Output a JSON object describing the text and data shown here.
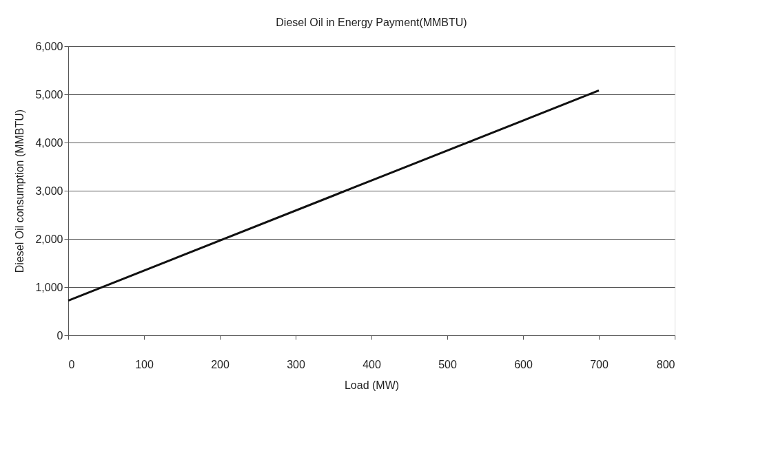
{
  "chart_data": {
    "type": "line",
    "title": "Diesel Oil in Energy Payment(MMBTU)",
    "xlabel": "Load (MW)",
    "ylabel": "Diesel Oil consumption (MMBTU)",
    "x": [
      0,
      350,
      700
    ],
    "series": [
      {
        "color": "#111111",
        "values": [
          720,
          2900,
          5080
        ]
      }
    ],
    "xlim": [
      0,
      800
    ],
    "xticks": [
      0,
      100,
      200,
      300,
      400,
      500,
      600,
      700,
      800
    ],
    "ylim": [
      0,
      6000
    ],
    "yticks": [
      0,
      {
        "value": 1000,
        "label": "1,000"
      },
      {
        "value": 2000,
        "label": "2,000"
      },
      {
        "value": 3000,
        "label": "3,000"
      },
      {
        "value": 4000,
        "label": "4,000"
      },
      {
        "value": 5000,
        "label": "5,000"
      },
      {
        "value": 6000,
        "label": "6,000"
      }
    ],
    "grid": "y",
    "marker": "none",
    "line_style": "solid"
  }
}
